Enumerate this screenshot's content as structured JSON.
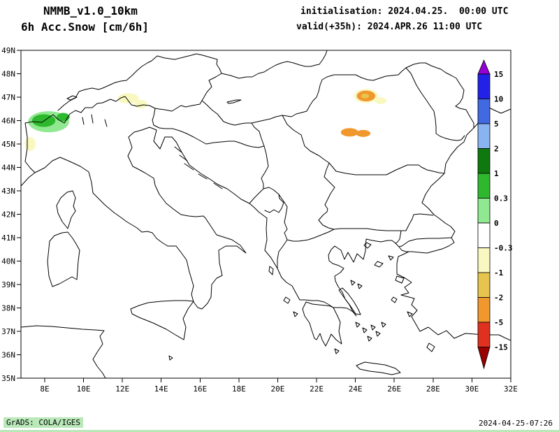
{
  "header": {
    "model_line": "NMMB_v1.0_10km",
    "field_line": "6h Acc.Snow [cm/6h]",
    "init_line": "initialisation: 2024.04.25.  00:00 UTC",
    "valid_line": "valid(+35h): 2024.APR.26 11:00 UTC"
  },
  "map": {
    "lat_ticks": [
      "49N",
      "48N",
      "47N",
      "46N",
      "45N",
      "44N",
      "43N",
      "42N",
      "41N",
      "40N",
      "39N",
      "38N",
      "37N",
      "36N",
      "35N"
    ],
    "lon_ticks": [
      "8E",
      "10E",
      "12E",
      "14E",
      "16E",
      "18E",
      "20E",
      "22E",
      "24E",
      "26E",
      "28E",
      "30E",
      "32E"
    ],
    "snow_patches": [
      {
        "name": "alps-fringe",
        "lon": 8.2,
        "lat": 45.95,
        "rlon": 1.05,
        "rlat": 0.45,
        "color": "#90e890"
      },
      {
        "name": "alps-core",
        "lon": 7.95,
        "lat": 46.0,
        "rlon": 0.6,
        "rlat": 0.27,
        "color": "#2eb82e"
      },
      {
        "name": "alps-core-east",
        "lon": 8.95,
        "lat": 46.15,
        "rlon": 0.33,
        "rlat": 0.18,
        "color": "#2eb82e"
      },
      {
        "name": "piedmont-spot",
        "lon": 7.25,
        "lat": 45.0,
        "rlon": 0.28,
        "rlat": 0.3,
        "color": "#f8f8c0"
      },
      {
        "name": "dolomites-a",
        "lon": 12.3,
        "lat": 46.95,
        "rlon": 0.55,
        "rlat": 0.22,
        "color": "#f8f8c0"
      },
      {
        "name": "dolomites-b",
        "lon": 12.95,
        "lat": 46.7,
        "rlon": 0.33,
        "rlat": 0.18,
        "color": "#f8f8c0"
      },
      {
        "name": "carpathians-north-halo",
        "lon": 24.55,
        "lat": 47.05,
        "rlon": 0.62,
        "rlat": 0.3,
        "color": "#f8f8c0"
      },
      {
        "name": "carpathians-north",
        "lon": 24.55,
        "lat": 47.05,
        "rlon": 0.48,
        "rlat": 0.23,
        "color": "#f0982e"
      },
      {
        "name": "carpathians-north-core",
        "lon": 24.5,
        "lat": 47.05,
        "rlon": 0.2,
        "rlat": 0.1,
        "color": "#e6c44e"
      },
      {
        "name": "carpathians-ne-spot",
        "lon": 25.3,
        "lat": 46.85,
        "rlon": 0.3,
        "rlat": 0.15,
        "color": "#f8f8c0"
      },
      {
        "name": "carpathians-south-west",
        "lon": 23.7,
        "lat": 45.5,
        "rlon": 0.45,
        "rlat": 0.18,
        "color": "#f0982e"
      },
      {
        "name": "carpathians-south-east",
        "lon": 24.4,
        "lat": 45.45,
        "rlon": 0.37,
        "rlat": 0.15,
        "color": "#f0982e"
      }
    ]
  },
  "colorbar": {
    "labels": [
      "15",
      "10",
      "5",
      "2",
      "1",
      "0.3",
      "0",
      "-0.3",
      "-1",
      "-2",
      "-5",
      "-15"
    ],
    "colors": [
      "#9400d3",
      "#2222e6",
      "#4169e1",
      "#8ab4f0",
      "#0f780f",
      "#2eb82e",
      "#90e890",
      "#ffffff",
      "#f8f8c0",
      "#e6c44e",
      "#f0982e",
      "#e03020",
      "#990000"
    ]
  },
  "footer": {
    "credit": "GrADS: COLA/IGES",
    "timestamp": "2024-04-25-07:26",
    "badge_color": "#b9e8b9"
  }
}
